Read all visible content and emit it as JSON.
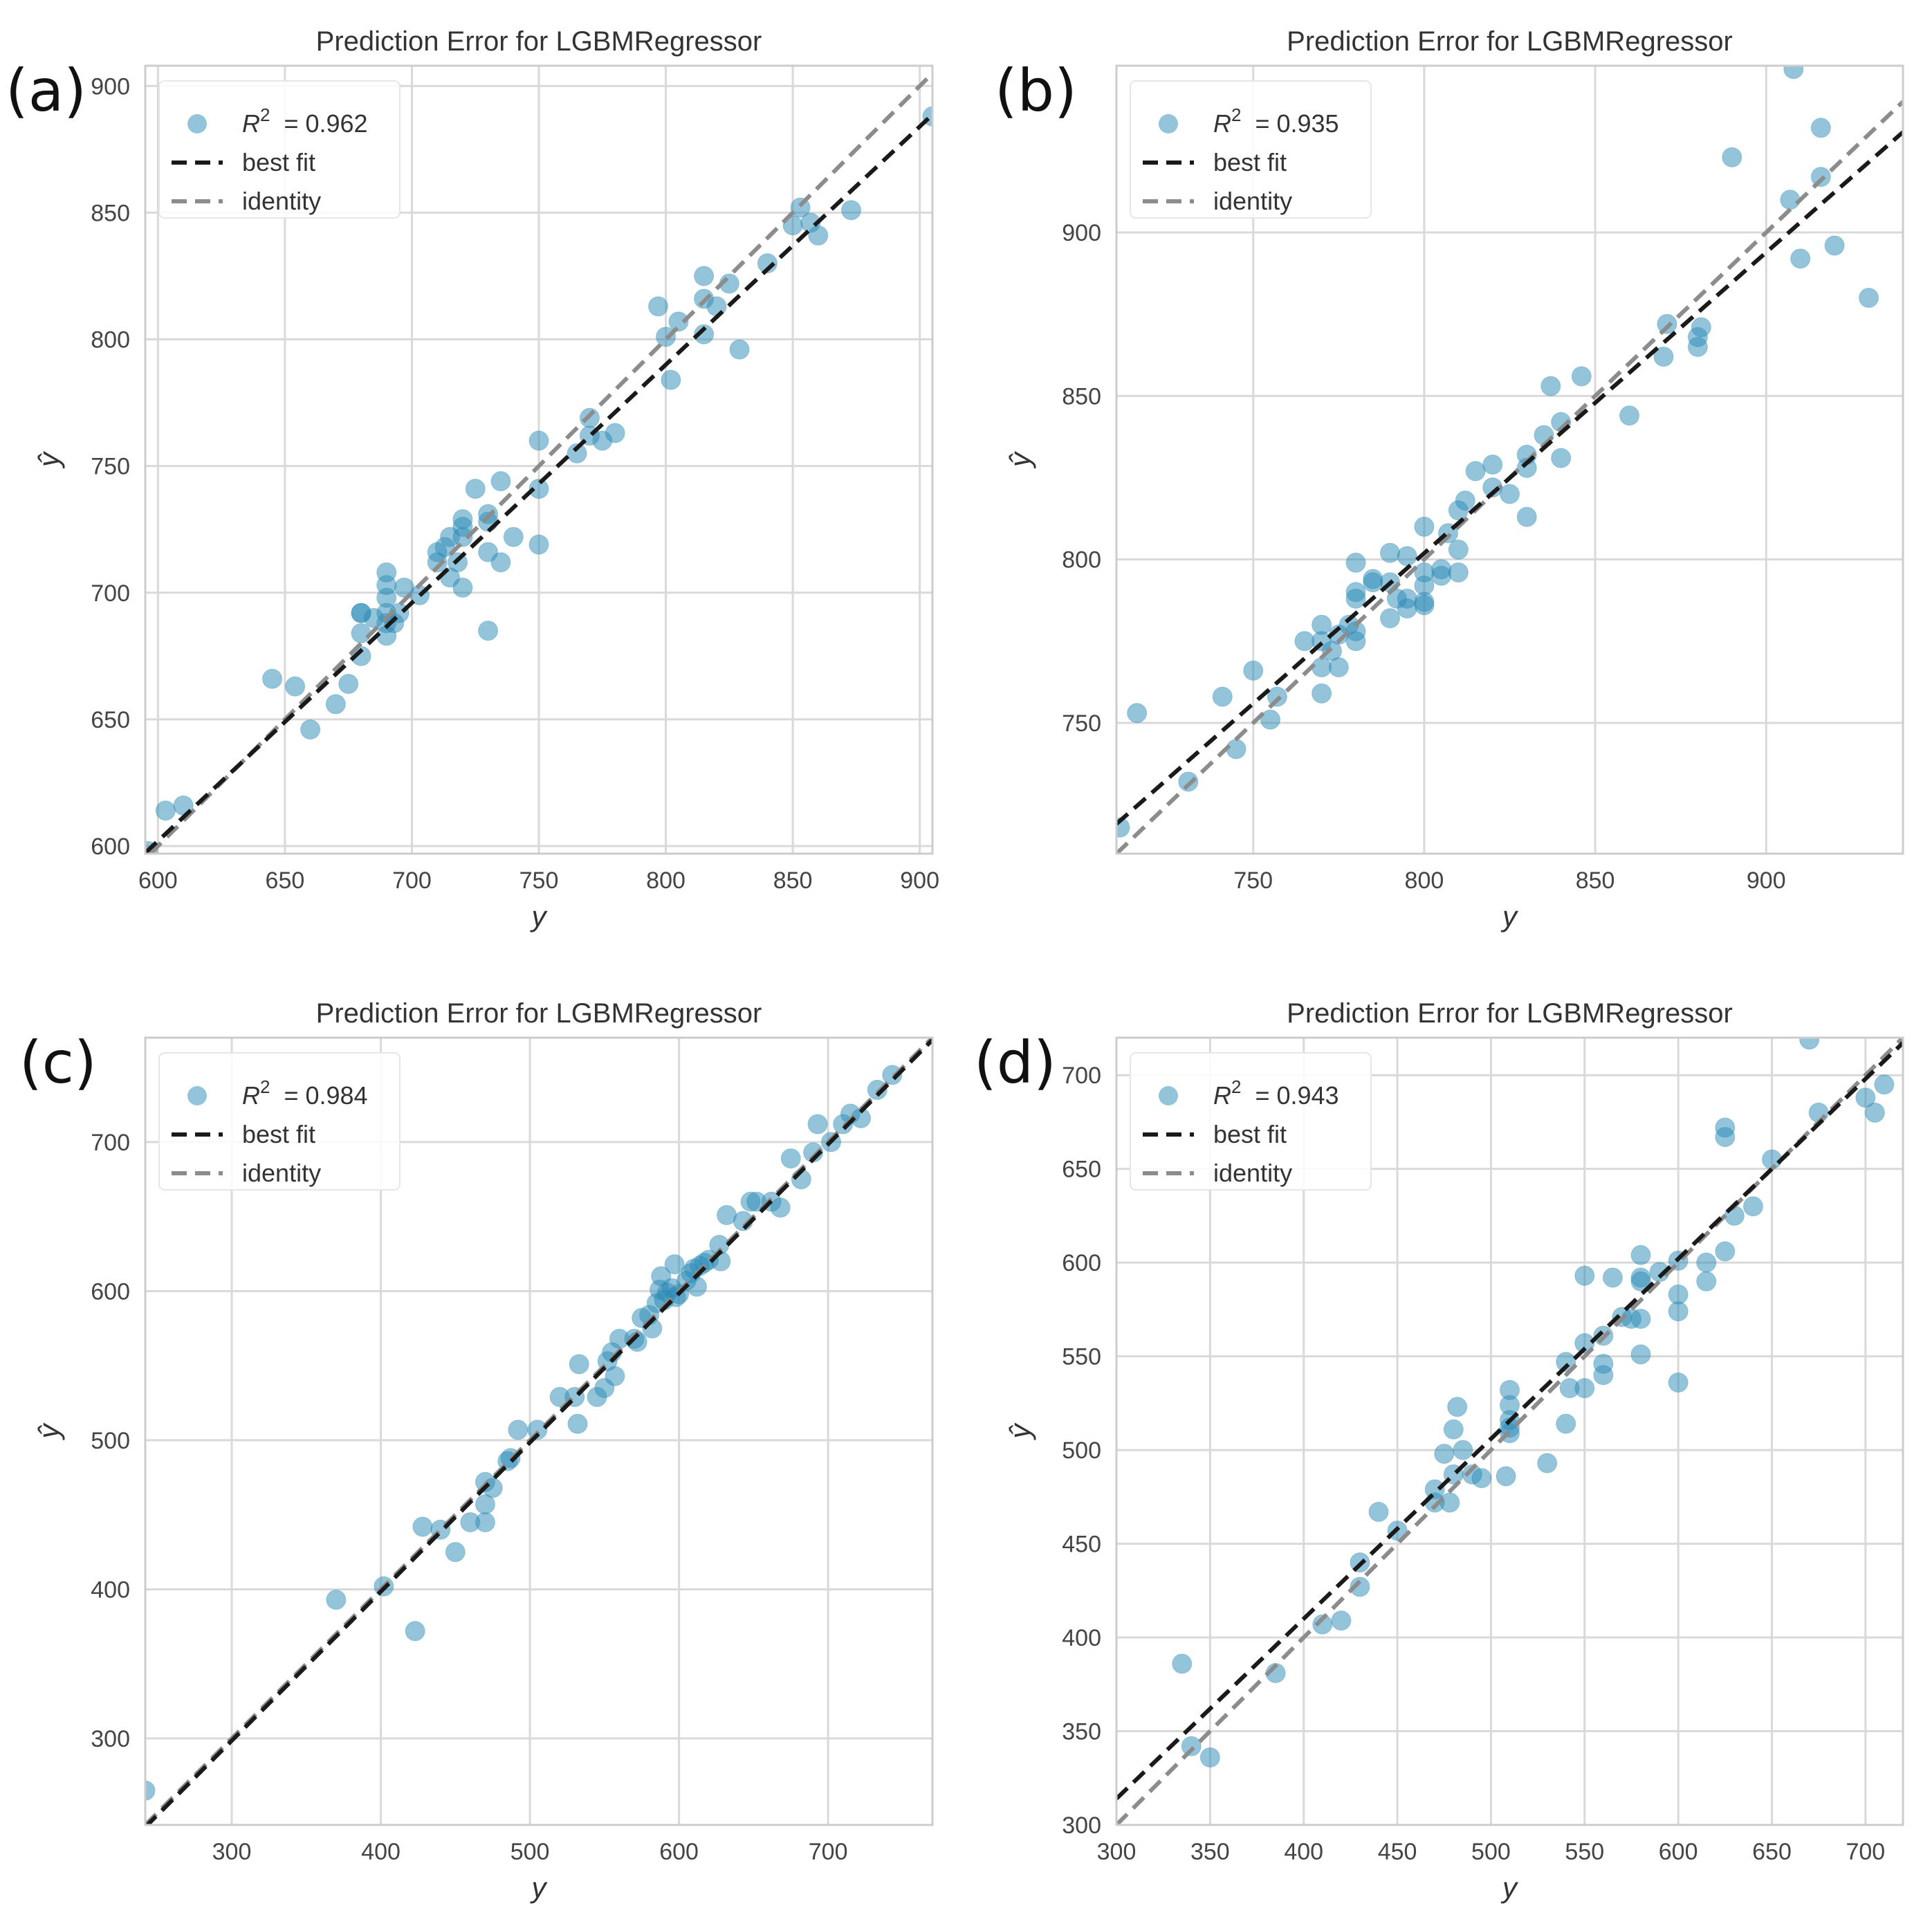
{
  "chart_data": [
    {
      "panel": "(a)",
      "type": "scatter",
      "title": "Prediction Error for LGBMRegressor",
      "xlabel": "y",
      "ylabel": "ŷ",
      "xlim": [
        595,
        905
      ],
      "ylim": [
        597,
        908
      ],
      "xticks": [
        600,
        650,
        700,
        750,
        800,
        850,
        900
      ],
      "yticks": [
        600,
        650,
        700,
        750,
        800,
        850,
        900
      ],
      "legend": {
        "r2_label": "R",
        "r2_sup": "2",
        "r2_value": "= 0.962",
        "best_fit": "best fit",
        "identity": "identity"
      },
      "best_fit": {
        "slope": 0.94,
        "intercept": 38
      },
      "points": [
        [
          596,
          598
        ],
        [
          603,
          614
        ],
        [
          610,
          616
        ],
        [
          645,
          666
        ],
        [
          654,
          663
        ],
        [
          660,
          646
        ],
        [
          670,
          656
        ],
        [
          675,
          664
        ],
        [
          680,
          675
        ],
        [
          680,
          684
        ],
        [
          680,
          692
        ],
        [
          680,
          692
        ],
        [
          685,
          690
        ],
        [
          690,
          683
        ],
        [
          690,
          688
        ],
        [
          690,
          692
        ],
        [
          690,
          698
        ],
        [
          690,
          703
        ],
        [
          690,
          708
        ],
        [
          693,
          688
        ],
        [
          695,
          692
        ],
        [
          697,
          702
        ],
        [
          703,
          699
        ],
        [
          710,
          712
        ],
        [
          710,
          716
        ],
        [
          713,
          718
        ],
        [
          715,
          706
        ],
        [
          715,
          722
        ],
        [
          718,
          712
        ],
        [
          720,
          702
        ],
        [
          720,
          722
        ],
        [
          720,
          726
        ],
        [
          720,
          729
        ],
        [
          725,
          741
        ],
        [
          730,
          685
        ],
        [
          730,
          716
        ],
        [
          730,
          728
        ],
        [
          730,
          731
        ],
        [
          735,
          712
        ],
        [
          735,
          744
        ],
        [
          740,
          722
        ],
        [
          750,
          719
        ],
        [
          750,
          741
        ],
        [
          750,
          760
        ],
        [
          765,
          755
        ],
        [
          770,
          762
        ],
        [
          770,
          769
        ],
        [
          775,
          760
        ],
        [
          780,
          763
        ],
        [
          797,
          813
        ],
        [
          800,
          801
        ],
        [
          802,
          784
        ],
        [
          805,
          807
        ],
        [
          815,
          802
        ],
        [
          815,
          816
        ],
        [
          815,
          825
        ],
        [
          820,
          813
        ],
        [
          825,
          822
        ],
        [
          829,
          796
        ],
        [
          840,
          830
        ],
        [
          850,
          845
        ],
        [
          853,
          852
        ],
        [
          857,
          846
        ],
        [
          860,
          841
        ],
        [
          873,
          851
        ],
        [
          905,
          888
        ]
      ]
    },
    {
      "panel": "(b)",
      "type": "scatter",
      "title": "Prediction Error for LGBMRegressor",
      "xlabel": "y",
      "ylabel": "ŷ",
      "xlim": [
        710,
        940
      ],
      "ylim": [
        710,
        951
      ],
      "xticks": [
        750,
        800,
        850,
        900
      ],
      "yticks": [
        750,
        800,
        850,
        900
      ],
      "legend": {
        "r2_label": "R",
        "r2_sup": "2",
        "r2_value": "= 0.935",
        "best_fit": "best fit",
        "identity": "identity"
      },
      "best_fit": {
        "slope": 0.92,
        "intercept": 65.9
      },
      "points": [
        [
          711,
          718
        ],
        [
          716,
          753
        ],
        [
          731,
          732
        ],
        [
          741,
          758
        ],
        [
          745,
          742
        ],
        [
          750,
          766
        ],
        [
          755,
          751
        ],
        [
          757,
          758
        ],
        [
          765,
          775
        ],
        [
          770,
          759
        ],
        [
          770,
          767
        ],
        [
          770,
          775
        ],
        [
          770,
          780
        ],
        [
          773,
          772
        ],
        [
          775,
          777
        ],
        [
          775,
          767
        ],
        [
          778,
          780
        ],
        [
          780,
          775
        ],
        [
          780,
          778
        ],
        [
          780,
          788
        ],
        [
          780,
          790
        ],
        [
          780,
          799
        ],
        [
          785,
          793
        ],
        [
          785,
          794
        ],
        [
          790,
          782
        ],
        [
          790,
          793
        ],
        [
          790,
          802
        ],
        [
          792,
          788
        ],
        [
          795,
          785
        ],
        [
          795,
          788
        ],
        [
          795,
          801
        ],
        [
          800,
          787
        ],
        [
          800,
          792
        ],
        [
          800,
          796
        ],
        [
          800,
          810
        ],
        [
          800,
          786
        ],
        [
          805,
          795
        ],
        [
          805,
          797
        ],
        [
          807,
          808
        ],
        [
          810,
          796
        ],
        [
          810,
          803
        ],
        [
          810,
          815
        ],
        [
          812,
          818
        ],
        [
          815,
          827
        ],
        [
          820,
          822
        ],
        [
          820,
          829
        ],
        [
          825,
          820
        ],
        [
          830,
          813
        ],
        [
          830,
          828
        ],
        [
          830,
          832
        ],
        [
          835,
          838
        ],
        [
          837,
          853
        ],
        [
          840,
          831
        ],
        [
          840,
          842
        ],
        [
          846,
          856
        ],
        [
          860,
          844
        ],
        [
          870,
          862
        ],
        [
          871,
          872
        ],
        [
          880,
          865
        ],
        [
          880,
          868
        ],
        [
          881,
          871
        ],
        [
          890,
          923
        ],
        [
          907,
          910
        ],
        [
          908,
          950
        ],
        [
          910,
          892
        ],
        [
          916,
          917
        ],
        [
          916,
          932
        ],
        [
          920,
          896
        ],
        [
          930,
          880
        ]
      ]
    },
    {
      "panel": "(c)",
      "type": "scatter",
      "title": "Prediction Error for LGBMRegressor",
      "xlabel": "y",
      "ylabel": "ŷ",
      "xlim": [
        242,
        770
      ],
      "ylim": [
        242,
        770
      ],
      "xticks": [
        300,
        400,
        500,
        600,
        700
      ],
      "yticks": [
        300,
        400,
        500,
        600,
        700
      ],
      "legend": {
        "r2_label": "R",
        "r2_sup": "2",
        "r2_value": "= 0.984",
        "best_fit": "best fit",
        "identity": "identity"
      },
      "best_fit": {
        "slope": 1.0,
        "intercept": -1.5
      },
      "points": [
        [
          242,
          265
        ],
        [
          370,
          393
        ],
        [
          402,
          402
        ],
        [
          423,
          372
        ],
        [
          428,
          442
        ],
        [
          440,
          440
        ],
        [
          450,
          425
        ],
        [
          460,
          445
        ],
        [
          470,
          445
        ],
        [
          470,
          457
        ],
        [
          470,
          472
        ],
        [
          475,
          468
        ],
        [
          485,
          486
        ],
        [
          487,
          488
        ],
        [
          492,
          507
        ],
        [
          505,
          507
        ],
        [
          520,
          529
        ],
        [
          530,
          529
        ],
        [
          532,
          511
        ],
        [
          533,
          551
        ],
        [
          545,
          529
        ],
        [
          550,
          535
        ],
        [
          552,
          553
        ],
        [
          555,
          559
        ],
        [
          557,
          543
        ],
        [
          560,
          568
        ],
        [
          570,
          568
        ],
        [
          572,
          566
        ],
        [
          575,
          582
        ],
        [
          580,
          584
        ],
        [
          582,
          575
        ],
        [
          585,
          592
        ],
        [
          587,
          601
        ],
        [
          588,
          610
        ],
        [
          590,
          594
        ],
        [
          592,
          599
        ],
        [
          595,
          602
        ],
        [
          597,
          618
        ],
        [
          598,
          596
        ],
        [
          600,
          598
        ],
        [
          605,
          607
        ],
        [
          608,
          612
        ],
        [
          610,
          615
        ],
        [
          612,
          603
        ],
        [
          614,
          617
        ],
        [
          617,
          619
        ],
        [
          620,
          621
        ],
        [
          627,
          631
        ],
        [
          628,
          620
        ],
        [
          632,
          651
        ],
        [
          643,
          647
        ],
        [
          648,
          660
        ],
        [
          652,
          660
        ],
        [
          662,
          660
        ],
        [
          668,
          656
        ],
        [
          675,
          689
        ],
        [
          682,
          675
        ],
        [
          690,
          693
        ],
        [
          693,
          712
        ],
        [
          702,
          700
        ],
        [
          710,
          712
        ],
        [
          715,
          719
        ],
        [
          722,
          716
        ],
        [
          733,
          735
        ],
        [
          743,
          745
        ]
      ]
    },
    {
      "panel": "(d)",
      "type": "scatter",
      "title": "Prediction Error for LGBMRegressor",
      "xlabel": "y",
      "ylabel": "ŷ",
      "xlim": [
        300,
        720
      ],
      "ylim": [
        300,
        720
      ],
      "xticks": [
        300,
        350,
        400,
        450,
        500,
        550,
        600,
        650,
        700
      ],
      "yticks": [
        300,
        350,
        400,
        450,
        500,
        550,
        600,
        650,
        700
      ],
      "legend": {
        "r2_label": "R",
        "r2_sup": "2",
        "r2_value": "= 0.943",
        "best_fit": "best fit",
        "identity": "identity"
      },
      "best_fit": {
        "slope": 0.96,
        "intercept": 26
      },
      "points": [
        [
          335,
          386
        ],
        [
          340,
          342
        ],
        [
          350,
          336
        ],
        [
          385,
          381
        ],
        [
          410,
          407
        ],
        [
          420,
          409
        ],
        [
          430,
          427
        ],
        [
          430,
          440
        ],
        [
          440,
          467
        ],
        [
          450,
          457
        ],
        [
          470,
          472
        ],
        [
          470,
          479
        ],
        [
          475,
          498
        ],
        [
          478,
          472
        ],
        [
          480,
          487
        ],
        [
          480,
          511
        ],
        [
          482,
          523
        ],
        [
          485,
          500
        ],
        [
          490,
          487
        ],
        [
          495,
          485
        ],
        [
          508,
          486
        ],
        [
          510,
          509
        ],
        [
          510,
          512
        ],
        [
          510,
          516
        ],
        [
          510,
          524
        ],
        [
          510,
          532
        ],
        [
          530,
          493
        ],
        [
          540,
          547
        ],
        [
          540,
          514
        ],
        [
          542,
          533
        ],
        [
          550,
          557
        ],
        [
          550,
          533
        ],
        [
          550,
          593
        ],
        [
          560,
          540
        ],
        [
          560,
          546
        ],
        [
          560,
          561
        ],
        [
          565,
          592
        ],
        [
          570,
          571
        ],
        [
          575,
          570
        ],
        [
          580,
          551
        ],
        [
          580,
          570
        ],
        [
          580,
          590
        ],
        [
          580,
          592
        ],
        [
          580,
          604
        ],
        [
          590,
          595
        ],
        [
          600,
          536
        ],
        [
          600,
          574
        ],
        [
          600,
          583
        ],
        [
          600,
          601
        ],
        [
          615,
          590
        ],
        [
          615,
          600
        ],
        [
          625,
          606
        ],
        [
          625,
          667
        ],
        [
          625,
          672
        ],
        [
          630,
          625
        ],
        [
          640,
          630
        ],
        [
          650,
          655
        ],
        [
          670,
          719
        ],
        [
          675,
          680
        ],
        [
          700,
          688
        ],
        [
          705,
          680
        ],
        [
          710,
          695
        ]
      ]
    }
  ]
}
